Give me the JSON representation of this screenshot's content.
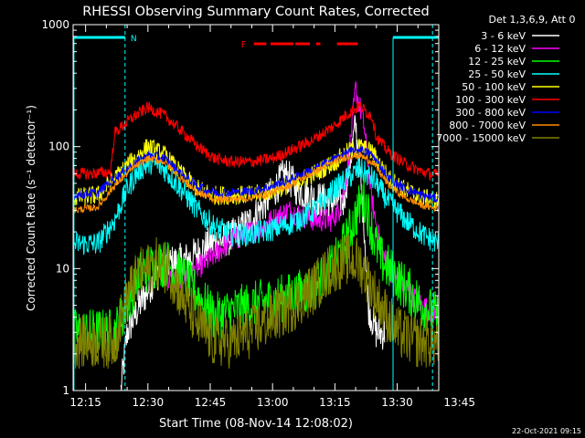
{
  "chart_data": {
    "type": "line",
    "title": "RHESSI Observing Summary Count Rates, Corrected",
    "xlabel": "Start Time (08-Nov-14 12:08:02)",
    "ylabel": "Corrected Count Rate (s⁻¹ detector⁻¹)",
    "yscale": "log",
    "ylim": [
      1,
      1000
    ],
    "xlim_minutes": [
      12.0,
      100.0
    ],
    "x_unit": "minutes after 12:00 UT",
    "x_ticks": [
      {
        "label": "12:15",
        "value": 15
      },
      {
        "label": "12:30",
        "value": 30
      },
      {
        "label": "12:45",
        "value": 45
      },
      {
        "label": "13:00",
        "value": 60
      },
      {
        "label": "13:15",
        "value": 75
      },
      {
        "label": "13:30",
        "value": 90
      },
      {
        "label": "13:45",
        "value": 105
      }
    ],
    "y_ticks": [
      {
        "label": "1",
        "value": 1
      },
      {
        "label": "10",
        "value": 10
      },
      {
        "label": "100",
        "value": 100
      },
      {
        "label": "1000",
        "value": 1000
      }
    ],
    "legend_title": "Det 1,3,6,9, Att 0",
    "legend_position": "right",
    "series": [
      {
        "name": "3 - 6 keV",
        "color": "#ffffff",
        "noise": 0.15,
        "points": [
          [
            23.5,
            1
          ],
          [
            25,
            3
          ],
          [
            28,
            5
          ],
          [
            32,
            9
          ],
          [
            35,
            11
          ],
          [
            40,
            12
          ],
          [
            45,
            16
          ],
          [
            50,
            18
          ],
          [
            55,
            25
          ],
          [
            60,
            42
          ],
          [
            63,
            60
          ],
          [
            66,
            45
          ],
          [
            70,
            38
          ],
          [
            74,
            35
          ],
          [
            77,
            35
          ],
          [
            80,
            150
          ],
          [
            82,
            25
          ],
          [
            83,
            5
          ],
          [
            85,
            3
          ],
          [
            87,
            3
          ]
        ]
      },
      {
        "name": "6 - 12 keV",
        "color": "#ff00ff",
        "noise": 0.1,
        "points": [
          [
            35,
            8
          ],
          [
            40,
            9
          ],
          [
            45,
            12
          ],
          [
            50,
            17
          ],
          [
            55,
            20
          ],
          [
            60,
            25
          ],
          [
            64,
            30
          ],
          [
            66,
            28
          ],
          [
            70,
            25
          ],
          [
            74,
            25
          ],
          [
            76,
            30
          ],
          [
            78,
            60
          ],
          [
            80,
            300
          ],
          [
            82,
            150
          ],
          [
            84,
            35
          ],
          [
            86,
            15
          ],
          [
            88,
            10
          ],
          [
            92,
            7
          ],
          [
            96,
            5
          ],
          [
            100,
            4
          ]
        ]
      },
      {
        "name": "12 - 25 keV",
        "color": "#00ff00",
        "noise": 0.2,
        "points": [
          [
            12,
            3
          ],
          [
            22,
            3
          ],
          [
            28,
            9
          ],
          [
            32,
            11
          ],
          [
            35,
            11
          ],
          [
            38,
            9
          ],
          [
            42,
            6
          ],
          [
            46,
            4
          ],
          [
            50,
            4.5
          ],
          [
            55,
            5
          ],
          [
            60,
            5.5
          ],
          [
            65,
            6
          ],
          [
            70,
            7
          ],
          [
            75,
            11
          ],
          [
            78,
            18
          ],
          [
            80,
            27
          ],
          [
            82,
            40
          ],
          [
            84,
            20
          ],
          [
            86,
            12
          ],
          [
            88,
            10
          ],
          [
            92,
            7
          ],
          [
            96,
            5
          ],
          [
            100,
            4
          ]
        ]
      },
      {
        "name": "25 - 50 keV",
        "color": "#00ffff",
        "noise": 0.1,
        "points": [
          [
            12,
            16
          ],
          [
            18,
            16
          ],
          [
            22,
            25
          ],
          [
            25,
            45
          ],
          [
            28,
            65
          ],
          [
            31,
            75
          ],
          [
            34,
            65
          ],
          [
            38,
            45
          ],
          [
            42,
            30
          ],
          [
            46,
            22
          ],
          [
            50,
            19
          ],
          [
            55,
            19
          ],
          [
            60,
            21
          ],
          [
            65,
            24
          ],
          [
            70,
            30
          ],
          [
            75,
            45
          ],
          [
            78,
            55
          ],
          [
            81,
            65
          ],
          [
            84,
            55
          ],
          [
            88,
            35
          ],
          [
            92,
            25
          ],
          [
            96,
            19
          ],
          [
            100,
            16
          ]
        ]
      },
      {
        "name": "50 - 100 keV",
        "color": "#ffff00",
        "noise": 0.08,
        "points": [
          [
            12,
            38
          ],
          [
            18,
            40
          ],
          [
            22,
            55
          ],
          [
            26,
            75
          ],
          [
            30,
            100
          ],
          [
            34,
            85
          ],
          [
            38,
            60
          ],
          [
            42,
            45
          ],
          [
            46,
            40
          ],
          [
            50,
            40
          ],
          [
            55,
            40
          ],
          [
            60,
            44
          ],
          [
            65,
            50
          ],
          [
            70,
            60
          ],
          [
            75,
            75
          ],
          [
            78,
            90
          ],
          [
            81,
            100
          ],
          [
            84,
            90
          ],
          [
            88,
            55
          ],
          [
            92,
            44
          ],
          [
            96,
            38
          ],
          [
            100,
            36
          ]
        ]
      },
      {
        "name": "100 - 300 keV",
        "color": "#ff0000",
        "noise": 0.05,
        "points": [
          [
            12,
            60
          ],
          [
            16,
            60
          ],
          [
            21,
            62
          ],
          [
            22,
            130
          ],
          [
            26,
            170
          ],
          [
            30,
            210
          ],
          [
            34,
            180
          ],
          [
            38,
            135
          ],
          [
            42,
            100
          ],
          [
            46,
            80
          ],
          [
            50,
            75
          ],
          [
            55,
            75
          ],
          [
            60,
            80
          ],
          [
            65,
            95
          ],
          [
            70,
            115
          ],
          [
            75,
            150
          ],
          [
            78,
            185
          ],
          [
            81,
            215
          ],
          [
            84,
            175
          ],
          [
            85,
            120
          ],
          [
            88,
            90
          ],
          [
            92,
            72
          ],
          [
            96,
            62
          ],
          [
            100,
            58
          ]
        ]
      },
      {
        "name": "300 - 800 keV",
        "color": "#0000ff",
        "noise": 0.04,
        "points": [
          [
            12,
            40
          ],
          [
            18,
            42
          ],
          [
            22,
            55
          ],
          [
            26,
            70
          ],
          [
            30,
            85
          ],
          [
            34,
            80
          ],
          [
            38,
            60
          ],
          [
            42,
            47
          ],
          [
            46,
            42
          ],
          [
            50,
            42
          ],
          [
            55,
            43
          ],
          [
            60,
            47
          ],
          [
            65,
            55
          ],
          [
            70,
            65
          ],
          [
            75,
            80
          ],
          [
            78,
            90
          ],
          [
            81,
            95
          ],
          [
            84,
            85
          ],
          [
            88,
            55
          ],
          [
            92,
            45
          ],
          [
            96,
            40
          ],
          [
            100,
            37
          ]
        ]
      },
      {
        "name": "800 - 7000 keV",
        "color": "#ff8c00",
        "noise": 0.03,
        "points": [
          [
            12,
            30
          ],
          [
            18,
            32
          ],
          [
            22,
            48
          ],
          [
            26,
            65
          ],
          [
            30,
            80
          ],
          [
            34,
            75
          ],
          [
            38,
            55
          ],
          [
            42,
            42
          ],
          [
            46,
            37
          ],
          [
            50,
            37
          ],
          [
            55,
            38
          ],
          [
            60,
            42
          ],
          [
            65,
            50
          ],
          [
            70,
            62
          ],
          [
            75,
            75
          ],
          [
            78,
            83
          ],
          [
            81,
            85
          ],
          [
            84,
            75
          ],
          [
            88,
            48
          ],
          [
            92,
            38
          ],
          [
            96,
            33
          ],
          [
            100,
            31
          ]
        ]
      },
      {
        "name": "7000 - 15000 keV",
        "color": "#808000",
        "noise": 0.22,
        "points": [
          [
            12,
            2.5
          ],
          [
            22,
            2.5
          ],
          [
            25,
            6
          ],
          [
            28,
            9
          ],
          [
            32,
            11
          ],
          [
            35,
            10
          ],
          [
            38,
            6
          ],
          [
            42,
            3.5
          ],
          [
            46,
            2.5
          ],
          [
            50,
            2.5
          ],
          [
            55,
            3
          ],
          [
            60,
            4
          ],
          [
            65,
            5
          ],
          [
            70,
            7
          ],
          [
            74,
            10
          ],
          [
            78,
            12
          ],
          [
            81,
            11
          ],
          [
            83,
            8
          ],
          [
            86,
            5
          ],
          [
            90,
            3
          ],
          [
            95,
            2.5
          ],
          [
            100,
            2.5
          ]
        ]
      }
    ],
    "annotations": {
      "night_bars": [
        {
          "start": 12,
          "end": 24.5
        },
        {
          "start": 89,
          "end": 100
        }
      ],
      "night_label": "N",
      "flare_label": "F",
      "flare_segments": [
        [
          55.5,
          58.5
        ],
        [
          59.5,
          65
        ],
        [
          65.5,
          69
        ],
        [
          70.5,
          71.5
        ],
        [
          75.5,
          80.5
        ]
      ],
      "saa_lines": [
        24.5,
        98.5
      ],
      "attenuator_lines": [
        12.2,
        89
      ]
    },
    "grid": false
  },
  "timestamp": "22-Oct-2021 09:15",
  "colors": {
    "background": "#000000",
    "axes": "#ffffff",
    "annotation_cyan": "#00ffff",
    "annotation_red": "#ff0000"
  }
}
